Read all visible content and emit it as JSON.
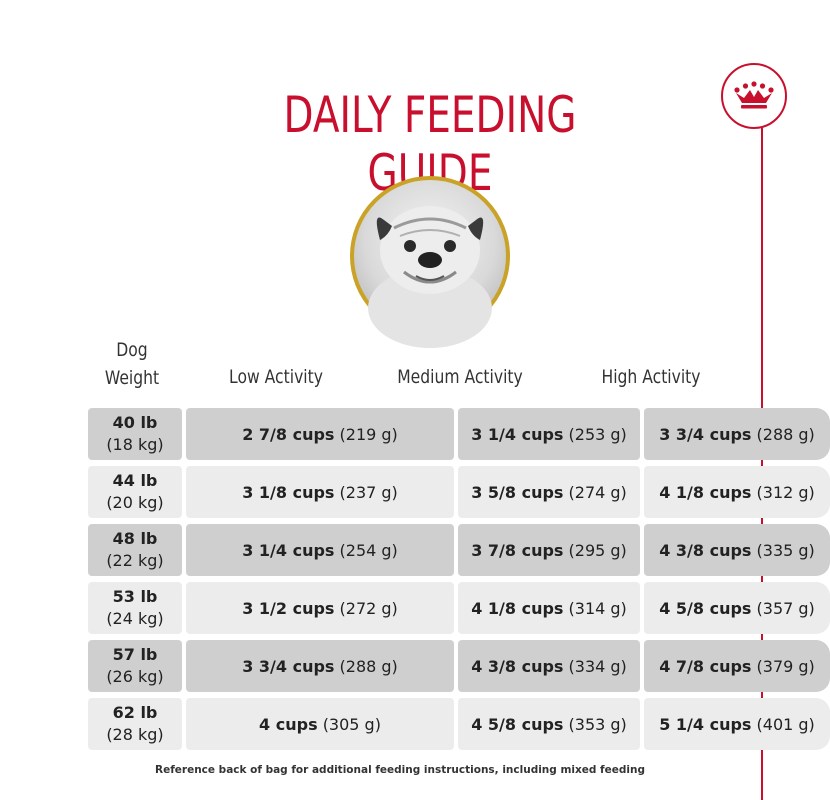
{
  "title": "DAILY FEEDING GUIDE",
  "colors": {
    "accent": "#c8102e",
    "gold": "#c9a227",
    "row_dark": "#cfcfcf",
    "row_light": "#ececec"
  },
  "icons": {
    "logo": "royal-crown-icon"
  },
  "table": {
    "headers": {
      "weight_line1": "Dog",
      "weight_line2": "Weight",
      "low": "Low Activity",
      "medium": "Medium Activity",
      "high": "High Activity"
    },
    "rows": [
      {
        "lb": "40 lb",
        "kg": "(18 kg)",
        "low": {
          "cups": "2 7/8 cups",
          "grams": "(219 g)"
        },
        "medium": {
          "cups": "3 1/4 cups",
          "grams": "(253 g)"
        },
        "high": {
          "cups": "3 3/4 cups",
          "grams": "(288 g)"
        }
      },
      {
        "lb": "44 lb",
        "kg": "(20 kg)",
        "low": {
          "cups": "3 1/8 cups",
          "grams": "(237 g)"
        },
        "medium": {
          "cups": "3 5/8 cups",
          "grams": "(274 g)"
        },
        "high": {
          "cups": "4 1/8 cups",
          "grams": "(312 g)"
        }
      },
      {
        "lb": "48 lb",
        "kg": "(22 kg)",
        "low": {
          "cups": "3 1/4 cups",
          "grams": "(254 g)"
        },
        "medium": {
          "cups": "3 7/8 cups",
          "grams": "(295 g)"
        },
        "high": {
          "cups": "4 3/8 cups",
          "grams": "(335 g)"
        }
      },
      {
        "lb": "53 lb",
        "kg": "(24 kg)",
        "low": {
          "cups": "3 1/2 cups",
          "grams": "(272 g)"
        },
        "medium": {
          "cups": "4 1/8 cups",
          "grams": "(314 g)"
        },
        "high": {
          "cups": "4 5/8 cups",
          "grams": "(357 g)"
        }
      },
      {
        "lb": "57 lb",
        "kg": "(26 kg)",
        "low": {
          "cups": "3 3/4 cups",
          "grams": "(288 g)"
        },
        "medium": {
          "cups": "4 3/8 cups",
          "grams": "(334 g)"
        },
        "high": {
          "cups": "4 7/8 cups",
          "grams": "(379 g)"
        }
      },
      {
        "lb": "62 lb",
        "kg": "(28 kg)",
        "low": {
          "cups": "4 cups",
          "grams": "(305 g)"
        },
        "medium": {
          "cups": "4 5/8 cups",
          "grams": "(353 g)"
        },
        "high": {
          "cups": "5 1/4 cups",
          "grams": "(401 g)"
        }
      }
    ]
  },
  "footnote": "Reference back of bag for additional feeding instructions, including mixed feeding"
}
